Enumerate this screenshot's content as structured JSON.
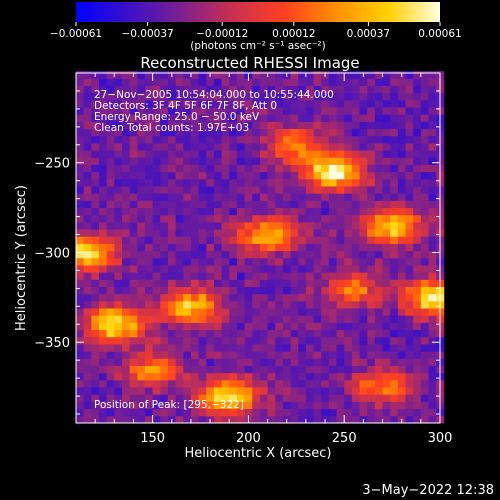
{
  "chart_data": {
    "type": "heatmap",
    "title": "Reconstructed RHESSI Image",
    "xlabel": "Heliocentric X (arcsec)",
    "ylabel": "Heliocentric Y (arcsec)",
    "xlim": [
      110,
      300
    ],
    "ylim": [
      -395,
      -200
    ],
    "x_ticks": [
      {
        "value": 150,
        "label": "150"
      },
      {
        "value": 200,
        "label": "200"
      },
      {
        "value": 250,
        "label": "250"
      },
      {
        "value": 300,
        "label": "300"
      }
    ],
    "y_ticks": [
      {
        "value": -250,
        "label": "−250"
      },
      {
        "value": -300,
        "label": "−300"
      },
      {
        "value": -350,
        "label": "−350"
      }
    ],
    "colorbar": {
      "range": [
        -0.00061,
        0.00061
      ],
      "tick_labels": [
        "−0.00061",
        "−0.00037",
        "−0.00012",
        "0.00012",
        "0.00037",
        "0.00061"
      ],
      "tick_values": [
        -0.00061,
        -0.00037,
        -0.00012,
        0.00012,
        0.00037,
        0.00061
      ],
      "unit_label": "(photons cm⁻² s⁻¹ asec⁻²)",
      "colormap": [
        "#0000ff",
        "#3a10c8",
        "#7a2090",
        "#c83050",
        "#ff4020",
        "#ff9000",
        "#ffd000",
        "#ffffe0"
      ]
    },
    "annotations": [
      "27−Nov−2005 10:54:04.000 to 10:55:44.000",
      "Detectors: 3F 4F 5F 6F 7F 8F, Att 0",
      "Energy Range: 25.0 − 50.0 keV",
      "Clean     Total counts: 1.97E+03"
    ],
    "peak_label": "Position of Peak:  [295,−322]",
    "peak": [
      295,
      -322
    ],
    "bright_sources": [
      {
        "x": 245,
        "y": -255,
        "strength": 1.0
      },
      {
        "x": 298,
        "y": -325,
        "strength": 1.0
      },
      {
        "x": 130,
        "y": -340,
        "strength": 0.95
      },
      {
        "x": 170,
        "y": -330,
        "strength": 0.85
      },
      {
        "x": 190,
        "y": -380,
        "strength": 0.9
      },
      {
        "x": 210,
        "y": -290,
        "strength": 0.75
      },
      {
        "x": 275,
        "y": -285,
        "strength": 0.85
      },
      {
        "x": 115,
        "y": -300,
        "strength": 0.9
      },
      {
        "x": 225,
        "y": -240,
        "strength": 0.6
      },
      {
        "x": 255,
        "y": -320,
        "strength": 0.55
      },
      {
        "x": 150,
        "y": -365,
        "strength": 0.6
      },
      {
        "x": 270,
        "y": -375,
        "strength": 0.6
      }
    ]
  },
  "footer": {
    "timestamp": "3−May−2022 12:38"
  }
}
